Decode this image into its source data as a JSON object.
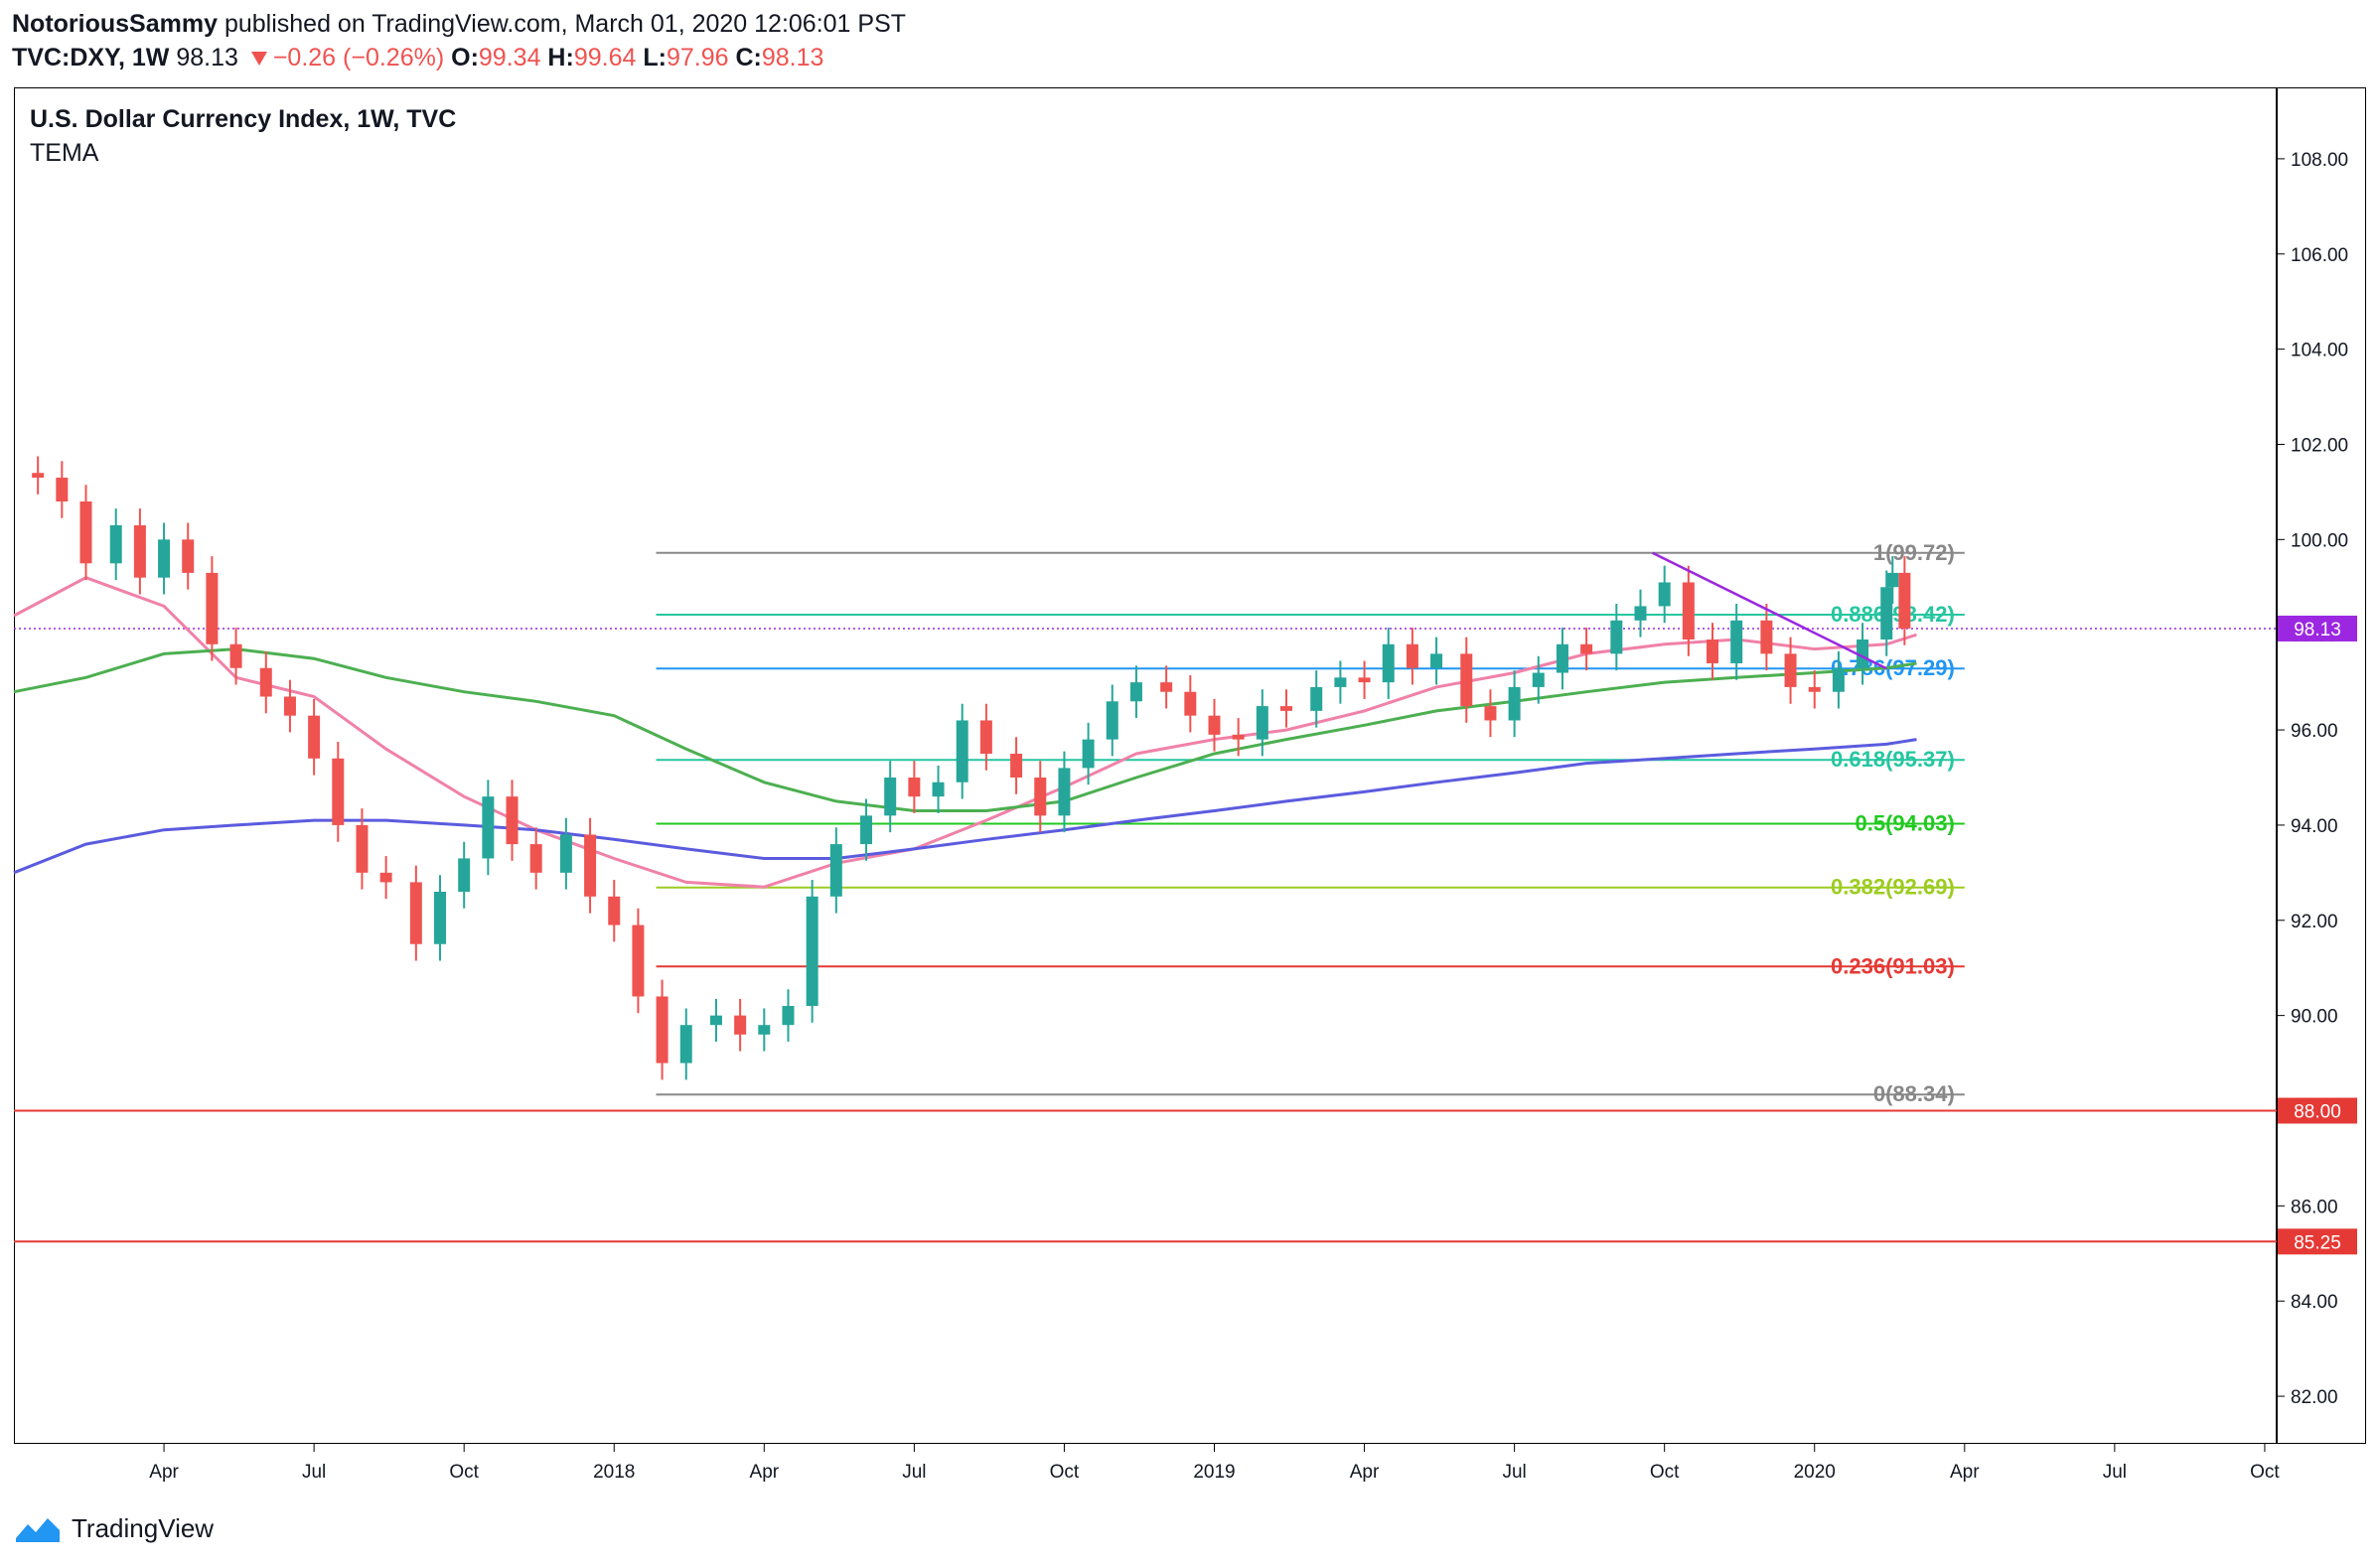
{
  "header": {
    "author": "NotoriousSammy",
    "published": "published on TradingView.com, March 01, 2020 12:06:01 PST",
    "symbol": "TVC:DXY, 1W",
    "last": "98.13",
    "change": "−0.26 (−0.26%)",
    "o_label": "O:",
    "o": "99.34",
    "h_label": "H:",
    "h": "99.64",
    "l_label": "L:",
    "l": "97.96",
    "c_label": "C:",
    "c": "98.13"
  },
  "legend": {
    "title": "U.S. Dollar Currency Index, 1W, TVC",
    "indicator": "TEMA"
  },
  "footer": {
    "brand": "TradingView"
  },
  "colors": {
    "up": "#26a69a",
    "down": "#ef5350",
    "pink": "#f081a8",
    "green": "#4caf50",
    "blue": "#5b5bdf",
    "trendline": "#9c27e0",
    "grid_gray": "#888888"
  },
  "chart_data": {
    "type": "candlestick",
    "symbol": "TVC:DXY",
    "timeframe": "1W",
    "ylim": [
      81,
      109.5
    ],
    "y_ticks": [
      "82.00",
      "84.00",
      "86.00",
      "88.00",
      "90.00",
      "92.00",
      "94.00",
      "96.00",
      "98.00",
      "100.00",
      "102.00",
      "104.00",
      "106.00",
      "108.00"
    ],
    "x_ticks": [
      {
        "label": "Apr",
        "x": 2017.25
      },
      {
        "label": "Jul",
        "x": 2017.5
      },
      {
        "label": "Oct",
        "x": 2017.75
      },
      {
        "label": "2018",
        "x": 2018.0
      },
      {
        "label": "Apr",
        "x": 2018.25
      },
      {
        "label": "Jul",
        "x": 2018.5
      },
      {
        "label": "Oct",
        "x": 2018.75
      },
      {
        "label": "2019",
        "x": 2019.0
      },
      {
        "label": "Apr",
        "x": 2019.25
      },
      {
        "label": "Jul",
        "x": 2019.5
      },
      {
        "label": "Oct",
        "x": 2019.75
      },
      {
        "label": "2020",
        "x": 2020.0
      },
      {
        "label": "Apr",
        "x": 2020.25
      },
      {
        "label": "Jul",
        "x": 2020.5
      },
      {
        "label": "Oct",
        "x": 2020.75
      }
    ],
    "xlim": [
      2017.0,
      2020.77
    ],
    "price_path": [
      [
        2017.0,
        101.4
      ],
      [
        2017.04,
        101.3
      ],
      [
        2017.08,
        100.8
      ],
      [
        2017.12,
        99.5
      ],
      [
        2017.17,
        100.3
      ],
      [
        2017.21,
        99.2
      ],
      [
        2017.25,
        100.0
      ],
      [
        2017.29,
        99.3
      ],
      [
        2017.33,
        97.8
      ],
      [
        2017.37,
        97.3
      ],
      [
        2017.42,
        96.7
      ],
      [
        2017.46,
        96.3
      ],
      [
        2017.5,
        95.4
      ],
      [
        2017.54,
        94.0
      ],
      [
        2017.58,
        93.0
      ],
      [
        2017.62,
        92.8
      ],
      [
        2017.67,
        91.5
      ],
      [
        2017.71,
        92.6
      ],
      [
        2017.75,
        93.3
      ],
      [
        2017.79,
        94.6
      ],
      [
        2017.83,
        93.6
      ],
      [
        2017.87,
        93.0
      ],
      [
        2017.92,
        93.8
      ],
      [
        2017.96,
        92.5
      ],
      [
        2018.0,
        91.9
      ],
      [
        2018.04,
        90.4
      ],
      [
        2018.08,
        89.0
      ],
      [
        2018.12,
        89.8
      ],
      [
        2018.17,
        90.0
      ],
      [
        2018.21,
        89.6
      ],
      [
        2018.25,
        89.8
      ],
      [
        2018.29,
        90.2
      ],
      [
        2018.33,
        92.5
      ],
      [
        2018.37,
        93.6
      ],
      [
        2018.42,
        94.2
      ],
      [
        2018.46,
        95.0
      ],
      [
        2018.5,
        94.6
      ],
      [
        2018.54,
        94.9
      ],
      [
        2018.58,
        96.2
      ],
      [
        2018.62,
        95.5
      ],
      [
        2018.67,
        95.0
      ],
      [
        2018.71,
        94.2
      ],
      [
        2018.75,
        95.2
      ],
      [
        2018.79,
        95.8
      ],
      [
        2018.83,
        96.6
      ],
      [
        2018.87,
        97.0
      ],
      [
        2018.92,
        96.8
      ],
      [
        2018.96,
        96.3
      ],
      [
        2019.0,
        95.9
      ],
      [
        2019.04,
        95.8
      ],
      [
        2019.08,
        96.5
      ],
      [
        2019.12,
        96.4
      ],
      [
        2019.17,
        96.9
      ],
      [
        2019.21,
        97.1
      ],
      [
        2019.25,
        97.0
      ],
      [
        2019.29,
        97.8
      ],
      [
        2019.33,
        97.3
      ],
      [
        2019.37,
        97.6
      ],
      [
        2019.42,
        96.5
      ],
      [
        2019.46,
        96.2
      ],
      [
        2019.5,
        96.9
      ],
      [
        2019.54,
        97.2
      ],
      [
        2019.58,
        97.8
      ],
      [
        2019.62,
        97.6
      ],
      [
        2019.67,
        98.3
      ],
      [
        2019.71,
        98.6
      ],
      [
        2019.75,
        99.1
      ],
      [
        2019.79,
        97.9
      ],
      [
        2019.83,
        97.4
      ],
      [
        2019.87,
        98.3
      ],
      [
        2019.92,
        97.6
      ],
      [
        2019.96,
        96.9
      ],
      [
        2020.0,
        96.8
      ],
      [
        2020.04,
        97.3
      ],
      [
        2020.08,
        97.9
      ],
      [
        2020.12,
        99.0
      ],
      [
        2020.13,
        99.3
      ],
      [
        2020.15,
        98.13
      ]
    ],
    "last_ohlc": {
      "open": 99.34,
      "high": 99.64,
      "low": 97.96,
      "close": 98.13
    },
    "series": [
      {
        "name": "TEMA",
        "color": "#f081a8",
        "points": [
          [
            2017.0,
            98.4
          ],
          [
            2017.12,
            99.2
          ],
          [
            2017.25,
            98.6
          ],
          [
            2017.37,
            97.1
          ],
          [
            2017.5,
            96.7
          ],
          [
            2017.62,
            95.6
          ],
          [
            2017.75,
            94.6
          ],
          [
            2017.87,
            93.9
          ],
          [
            2018.0,
            93.3
          ],
          [
            2018.12,
            92.8
          ],
          [
            2018.25,
            92.7
          ],
          [
            2018.37,
            93.2
          ],
          [
            2018.5,
            93.5
          ],
          [
            2018.62,
            94.1
          ],
          [
            2018.75,
            94.8
          ],
          [
            2018.87,
            95.5
          ],
          [
            2019.0,
            95.8
          ],
          [
            2019.12,
            96.0
          ],
          [
            2019.25,
            96.4
          ],
          [
            2019.37,
            96.9
          ],
          [
            2019.5,
            97.2
          ],
          [
            2019.62,
            97.6
          ],
          [
            2019.75,
            97.8
          ],
          [
            2019.87,
            97.9
          ],
          [
            2020.0,
            97.7
          ],
          [
            2020.12,
            97.8
          ],
          [
            2020.17,
            98.0
          ]
        ]
      },
      {
        "name": "",
        "color": "#4caf50",
        "points": [
          [
            2017.0,
            96.8
          ],
          [
            2017.12,
            97.1
          ],
          [
            2017.25,
            97.6
          ],
          [
            2017.37,
            97.7
          ],
          [
            2017.5,
            97.5
          ],
          [
            2017.62,
            97.1
          ],
          [
            2017.75,
            96.8
          ],
          [
            2017.87,
            96.6
          ],
          [
            2018.0,
            96.3
          ],
          [
            2018.12,
            95.6
          ],
          [
            2018.25,
            94.9
          ],
          [
            2018.37,
            94.5
          ],
          [
            2018.5,
            94.3
          ],
          [
            2018.62,
            94.3
          ],
          [
            2018.75,
            94.5
          ],
          [
            2018.87,
            95.0
          ],
          [
            2019.0,
            95.5
          ],
          [
            2019.12,
            95.8
          ],
          [
            2019.25,
            96.1
          ],
          [
            2019.37,
            96.4
          ],
          [
            2019.5,
            96.6
          ],
          [
            2019.62,
            96.8
          ],
          [
            2019.75,
            97.0
          ],
          [
            2019.87,
            97.1
          ],
          [
            2020.0,
            97.2
          ],
          [
            2020.12,
            97.3
          ],
          [
            2020.17,
            97.4
          ]
        ]
      },
      {
        "name": "",
        "color": "#5b5bdf",
        "points": [
          [
            2017.0,
            93.0
          ],
          [
            2017.12,
            93.6
          ],
          [
            2017.25,
            93.9
          ],
          [
            2017.37,
            94.0
          ],
          [
            2017.5,
            94.1
          ],
          [
            2017.62,
            94.1
          ],
          [
            2017.75,
            94.0
          ],
          [
            2017.87,
            93.9
          ],
          [
            2018.0,
            93.7
          ],
          [
            2018.12,
            93.5
          ],
          [
            2018.25,
            93.3
          ],
          [
            2018.37,
            93.3
          ],
          [
            2018.5,
            93.5
          ],
          [
            2018.62,
            93.7
          ],
          [
            2018.75,
            93.9
          ],
          [
            2018.87,
            94.1
          ],
          [
            2019.0,
            94.3
          ],
          [
            2019.12,
            94.5
          ],
          [
            2019.25,
            94.7
          ],
          [
            2019.37,
            94.9
          ],
          [
            2019.5,
            95.1
          ],
          [
            2019.62,
            95.3
          ],
          [
            2019.75,
            95.4
          ],
          [
            2019.87,
            95.5
          ],
          [
            2020.0,
            95.6
          ],
          [
            2020.12,
            95.7
          ],
          [
            2020.17,
            95.8
          ]
        ]
      }
    ],
    "fib_levels": [
      {
        "label": "1(99.72)",
        "value": 99.72,
        "color": "#888888"
      },
      {
        "label": "0.886(98.42)",
        "value": 98.42,
        "color": "#26c6a0"
      },
      {
        "label": "0.786(97.29)",
        "value": 97.29,
        "color": "#2196f3"
      },
      {
        "label": "0.618(95.37)",
        "value": 95.37,
        "color": "#26c6a0"
      },
      {
        "label": "0.5(94.03)",
        "value": 94.03,
        "color": "#22c922"
      },
      {
        "label": "0.382(92.69)",
        "value": 92.69,
        "color": "#9ccc20"
      },
      {
        "label": "0.236(91.03)",
        "value": 91.03,
        "color": "#e53935"
      },
      {
        "label": "0(88.34)",
        "value": 88.34,
        "color": "#888888"
      }
    ],
    "fib_range": [
      2018.07,
      2020.25
    ],
    "trendline": {
      "from": [
        2019.73,
        99.72
      ],
      "to": [
        2020.12,
        97.29
      ],
      "color": "#9c27e0"
    },
    "horizontal_lines": [
      {
        "value": 98.13,
        "label": "98.13",
        "color": "#9c27e0",
        "style": "dotted"
      },
      {
        "value": 88.0,
        "label": "88.00",
        "color": "#e53935",
        "style": "solid"
      },
      {
        "value": 85.25,
        "label": "85.25",
        "color": "#e53935",
        "style": "solid"
      }
    ]
  }
}
